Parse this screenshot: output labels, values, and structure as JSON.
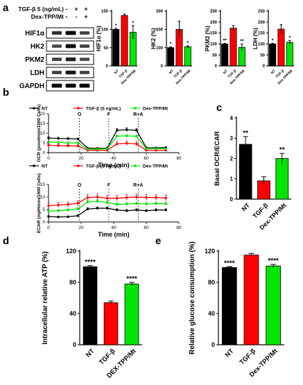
{
  "panel_labels": {
    "a": "a",
    "b": "b",
    "c": "c",
    "d": "d",
    "e": "e"
  },
  "colors": {
    "NT": "#000000",
    "TGF": "#ff0000",
    "Dex": "#00e600"
  },
  "blot": {
    "treatments": [
      {
        "label": "TGF-β 5 (ng/mL)",
        "signs": [
          "-",
          "+",
          "+"
        ]
      },
      {
        "label": "Dex-TPP/Mt",
        "signs": [
          "-",
          "-",
          "+"
        ]
      }
    ],
    "bands": [
      {
        "label": "HIF1α",
        "intensity": [
          0.7,
          0.95,
          0.6
        ]
      },
      {
        "label": "HK2",
        "intensity": [
          0.55,
          0.9,
          0.6
        ]
      },
      {
        "label": "PKM2",
        "intensity": [
          0.6,
          0.8,
          0.55
        ]
      },
      {
        "label": "LDH",
        "intensity": [
          0.6,
          0.85,
          0.6
        ]
      },
      {
        "label": "GAPDH",
        "intensity": [
          0.95,
          0.95,
          0.95
        ]
      }
    ]
  },
  "chart_data": [
    {
      "id": "hif1a",
      "type": "bar",
      "categories": [
        "NT",
        "TGF-β",
        "Dex-TPP/Mt"
      ],
      "values": [
        100,
        138,
        92
      ],
      "errors": [
        3,
        4,
        18
      ],
      "sig": [
        "*",
        "",
        "*"
      ],
      "ylabel": "HIF1α (%)",
      "ylim": [
        0,
        150
      ],
      "yticks": [
        0,
        50,
        100,
        150
      ]
    },
    {
      "id": "hk2",
      "type": "bar",
      "categories": [
        "NT",
        "TGF-β",
        "Dex-TPP/Mt"
      ],
      "values": [
        100,
        200,
        105
      ],
      "errors": [
        4,
        45,
        5
      ],
      "sig": [
        "*",
        "",
        "*"
      ],
      "ylabel": "HK2 (%)",
      "ylim": [
        0,
        300
      ],
      "yticks": [
        0,
        100,
        200,
        300
      ]
    },
    {
      "id": "pkm2",
      "type": "bar",
      "categories": [
        "NT",
        "TGF-β",
        "Dex-TPP/Mt"
      ],
      "values": [
        100,
        172,
        85
      ],
      "errors": [
        3,
        12,
        15
      ],
      "sig": [
        "**",
        "",
        "**"
      ],
      "ylabel": "PKM2 (%)",
      "ylim": [
        0,
        250
      ],
      "yticks": [
        0,
        50,
        100,
        150,
        200,
        250
      ]
    },
    {
      "id": "ldh",
      "type": "bar",
      "categories": [
        "NT",
        "TGF-β",
        "Dex-TPP/Mt"
      ],
      "values": [
        100,
        168,
        108
      ],
      "errors": [
        3,
        20,
        8
      ],
      "sig": [
        "*",
        "",
        "*"
      ],
      "ylabel": "LDH (%)",
      "ylim": [
        0,
        250
      ],
      "yticks": [
        0,
        50,
        100,
        150,
        200,
        250
      ]
    },
    {
      "id": "ocr",
      "type": "line",
      "ylabel": "OCR (pmol/min/1000 Cells)",
      "xlabel": "Time (min)",
      "xlim": [
        0,
        80
      ],
      "ylim": [
        0,
        20
      ],
      "xticks": [
        0,
        20,
        40,
        60,
        80
      ],
      "yticks": [
        0,
        5,
        10,
        15,
        20
      ],
      "x": [
        0,
        6,
        12,
        18,
        24,
        30,
        36,
        42,
        48,
        54,
        60,
        66,
        72
      ],
      "series": [
        {
          "name": "NT",
          "values": [
            7.5,
            7.3,
            7.2,
            7.0,
            2.3,
            2.2,
            2.3,
            11.5,
            11.8,
            11.5,
            2.5,
            2.4,
            2.6
          ],
          "errors": [
            0.6,
            0.6,
            0.5,
            0.5,
            0.4,
            0.4,
            0.4,
            0.9,
            1.0,
            0.9,
            0.4,
            0.4,
            0.4
          ]
        },
        {
          "name": "TGF-β (5 ng/mL)",
          "values": [
            3.8,
            3.6,
            3.5,
            3.4,
            1.2,
            1.2,
            1.2,
            4.5,
            4.8,
            4.5,
            1.2,
            1.2,
            1.2
          ],
          "errors": [
            0.8,
            0.8,
            0.7,
            0.7,
            0.4,
            0.4,
            0.4,
            1.2,
            1.2,
            1.2,
            0.4,
            0.4,
            0.4
          ]
        },
        {
          "name": "Dex-TPP/Mt",
          "values": [
            5.5,
            5.2,
            5.0,
            5.0,
            1.8,
            1.8,
            1.9,
            8.5,
            8.6,
            8.4,
            2.0,
            2.0,
            2.0
          ],
          "errors": [
            0.5,
            0.5,
            0.5,
            0.5,
            0.3,
            0.3,
            0.3,
            0.7,
            0.7,
            0.7,
            0.3,
            0.3,
            0.3
          ]
        }
      ],
      "injections": [
        {
          "label": "O",
          "x": 19
        },
        {
          "label": "F",
          "x": 37
        },
        {
          "label": "R+A",
          "x": 55
        }
      ]
    },
    {
      "id": "ecar",
      "type": "line",
      "ylabel": "ECAR (mpH/min/1000 Cells)",
      "xlabel": "Time (min)",
      "xlim": [
        0,
        80
      ],
      "ylim": [
        0,
        15
      ],
      "xticks": [
        0,
        20,
        40,
        60,
        80
      ],
      "yticks": [
        0,
        5,
        10,
        15
      ],
      "x": [
        0,
        6,
        12,
        18,
        24,
        30,
        36,
        42,
        48,
        54,
        60,
        66,
        72
      ],
      "series": [
        {
          "name": "NT",
          "values": [
            2.2,
            2.0,
            2.1,
            2.5,
            5.2,
            5.5,
            5.5,
            4.8,
            4.5,
            4.8,
            4.5,
            4.8,
            4.8
          ],
          "errors": [
            0.3,
            0.3,
            0.3,
            0.4,
            0.5,
            0.5,
            0.5,
            0.5,
            0.5,
            0.5,
            0.5,
            0.5,
            0.5
          ]
        },
        {
          "name": "TGF-β (5 ng/mL)",
          "values": [
            6.5,
            6.8,
            7.0,
            7.5,
            9.8,
            10.0,
            9.5,
            9.5,
            9.8,
            10.0,
            9.8,
            9.8,
            9.6
          ],
          "errors": [
            1.0,
            1.0,
            1.0,
            1.0,
            1.2,
            1.2,
            1.2,
            1.2,
            1.2,
            1.2,
            1.2,
            1.2,
            1.2
          ]
        },
        {
          "name": "Dex-TPP/Mt",
          "values": [
            4.3,
            4.5,
            4.8,
            5.2,
            8.0,
            8.3,
            7.8,
            7.0,
            7.2,
            7.4,
            7.2,
            7.4,
            7.3
          ],
          "errors": [
            0.5,
            0.5,
            0.5,
            0.5,
            0.6,
            0.6,
            0.6,
            0.6,
            0.6,
            0.6,
            0.6,
            0.6,
            0.6
          ]
        }
      ],
      "injections": [
        {
          "label": "O",
          "x": 19
        },
        {
          "label": "F",
          "x": 37
        },
        {
          "label": "R+A",
          "x": 55
        }
      ]
    },
    {
      "id": "ocr_ecar",
      "type": "bar",
      "categories": [
        "NT",
        "TGF-β",
        "Dex-TPP/Mt"
      ],
      "values": [
        2.7,
        0.9,
        2.0
      ],
      "errors": [
        0.38,
        0.2,
        0.25
      ],
      "sig": [
        "**",
        "",
        "**"
      ],
      "ylabel": "Basal OCR/ECAR",
      "ylim": [
        0,
        4
      ],
      "yticks": [
        0,
        1,
        2,
        3,
        4
      ]
    },
    {
      "id": "atp",
      "type": "bar",
      "categories": [
        "NT",
        "TGF-β",
        "DEX-TPP/Mt"
      ],
      "values": [
        100,
        54,
        78
      ],
      "errors": [
        1.5,
        2,
        2
      ],
      "sig": [
        "****",
        "",
        "****"
      ],
      "ylabel": "Intracellular relative ATP (%)",
      "ylim": [
        0,
        120
      ],
      "yticks": [
        0,
        40,
        80,
        120
      ]
    },
    {
      "id": "glucose",
      "type": "bar",
      "categories": [
        "NT",
        "TGF-β",
        "Dex-TPP/Mt"
      ],
      "values": [
        99,
        115,
        101
      ],
      "errors": [
        1,
        2,
        2
      ],
      "sig": [
        "****",
        "",
        "****"
      ],
      "ylabel": "Relative glucose consumption (%)",
      "ylim": [
        0,
        120
      ],
      "yticks": [
        0,
        40,
        80,
        120
      ]
    }
  ]
}
